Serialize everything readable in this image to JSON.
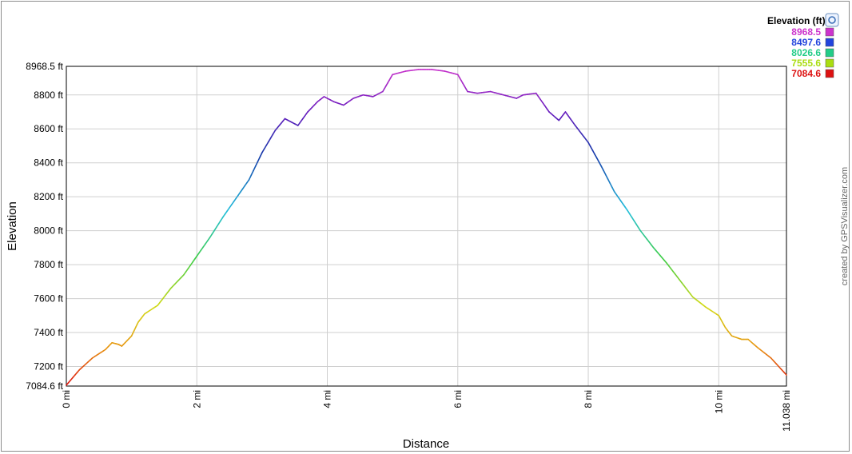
{
  "chart_data": {
    "type": "line",
    "xlabel": "Distance",
    "ylabel": "Elevation",
    "xlim": [
      0,
      11.038
    ],
    "ylim": [
      7084.6,
      8968.5
    ],
    "grid": true,
    "x_ticks": [
      {
        "v": 0,
        "label": "0 mi"
      },
      {
        "v": 2,
        "label": "2 mi"
      },
      {
        "v": 4,
        "label": "4 mi"
      },
      {
        "v": 6,
        "label": "6 mi"
      },
      {
        "v": 8,
        "label": "8 mi"
      },
      {
        "v": 10,
        "label": "10 mi"
      },
      {
        "v": 11.038,
        "label": "11.038 mi"
      }
    ],
    "y_ticks": [
      {
        "v": 7084.6,
        "label": "7084.6 ft"
      },
      {
        "v": 7200,
        "label": "7200 ft"
      },
      {
        "v": 7400,
        "label": "7400 ft"
      },
      {
        "v": 7600,
        "label": "7600 ft"
      },
      {
        "v": 7800,
        "label": "7800 ft"
      },
      {
        "v": 8000,
        "label": "8000 ft"
      },
      {
        "v": 8200,
        "label": "8200 ft"
      },
      {
        "v": 8400,
        "label": "8400 ft"
      },
      {
        "v": 8600,
        "label": "8600 ft"
      },
      {
        "v": 8800,
        "label": "8800 ft"
      },
      {
        "v": 8968.5,
        "label": "8968.5 ft"
      }
    ],
    "series": [
      {
        "name": "Elevation",
        "x": [
          0,
          0.2,
          0.4,
          0.6,
          0.7,
          0.8,
          0.85,
          1.0,
          1.1,
          1.2,
          1.4,
          1.5,
          1.6,
          1.7,
          1.8,
          2.0,
          2.2,
          2.4,
          2.6,
          2.8,
          3.0,
          3.2,
          3.35,
          3.45,
          3.55,
          3.7,
          3.85,
          3.95,
          4.1,
          4.25,
          4.4,
          4.55,
          4.7,
          4.85,
          5.0,
          5.2,
          5.4,
          5.6,
          5.8,
          6.0,
          6.15,
          6.3,
          6.5,
          6.7,
          6.9,
          7.0,
          7.2,
          7.4,
          7.55,
          7.65,
          7.8,
          8.0,
          8.2,
          8.4,
          8.6,
          8.8,
          9.0,
          9.2,
          9.4,
          9.6,
          9.8,
          10.0,
          10.1,
          10.2,
          10.35,
          10.45,
          10.6,
          10.8,
          11.038
        ],
        "y": [
          7090,
          7180,
          7250,
          7300,
          7340,
          7330,
          7320,
          7380,
          7460,
          7510,
          7560,
          7610,
          7660,
          7700,
          7740,
          7850,
          7960,
          8080,
          8190,
          8300,
          8460,
          8590,
          8660,
          8640,
          8620,
          8700,
          8760,
          8790,
          8760,
          8740,
          8780,
          8800,
          8790,
          8820,
          8920,
          8940,
          8950,
          8950,
          8940,
          8920,
          8820,
          8810,
          8820,
          8800,
          8780,
          8800,
          8810,
          8700,
          8650,
          8700,
          8620,
          8520,
          8380,
          8230,
          8120,
          8000,
          7900,
          7810,
          7710,
          7610,
          7550,
          7500,
          7430,
          7380,
          7360,
          7360,
          7310,
          7250,
          7150
        ]
      }
    ]
  },
  "legend": {
    "title": "Elevation (ft)",
    "entries": [
      {
        "label": "8968.5",
        "color": "#cc33cc"
      },
      {
        "label": "8497.6",
        "color": "#2244dd"
      },
      {
        "label": "8026.6",
        "color": "#22cc88"
      },
      {
        "label": "7555.6",
        "color": "#aadd11"
      },
      {
        "label": "7084.6",
        "color": "#dd1111"
      }
    ]
  },
  "credit": "created by GPSVisualizer.com",
  "colors": {
    "low": "#dd1111",
    "mid_low": "#d9d91a",
    "mid": "#22cc77",
    "mid_high": "#22bbdd",
    "high_blue": "#1133aa",
    "top": "#cc33cc"
  }
}
